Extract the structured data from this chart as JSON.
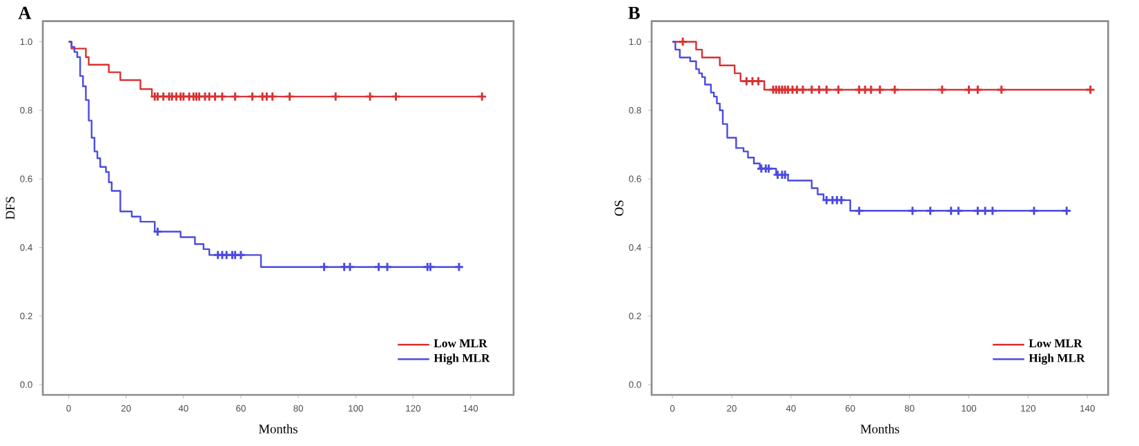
{
  "chart_data": [
    {
      "type": "step",
      "title": "A",
      "xlabel": "Months",
      "ylabel": "DFS",
      "xlim": [
        -9,
        155
      ],
      "ylim": [
        -0.03,
        1.06
      ],
      "xticks": [
        0,
        20,
        40,
        60,
        80,
        100,
        120,
        140
      ],
      "yticks": [
        {
          "value": 0,
          "label": "0.0"
        },
        {
          "value": 0.2,
          "label": "0.2"
        },
        {
          "value": 0.4,
          "label": "0.4"
        },
        {
          "value": 0.6,
          "label": "0.6"
        },
        {
          "value": 0.8,
          "label": "0.8"
        },
        {
          "value": 1,
          "label": "1.0"
        }
      ],
      "grid": false,
      "legend": "bottom right",
      "marker": "none",
      "line_style": "solid",
      "series": [
        {
          "name": "Low MLR",
          "type": "step",
          "color": "#d93030",
          "x": [
            0,
            1,
            6,
            7,
            14,
            18,
            25,
            29,
            144
          ],
          "values": [
            1.0,
            0.98,
            0.955,
            0.933,
            0.911,
            0.888,
            0.862,
            0.84,
            0.84
          ]
        },
        {
          "name": "High MLR",
          "type": "step",
          "color": "#4a4ae0",
          "x": [
            0,
            1,
            2,
            3,
            4,
            5,
            6,
            7,
            8,
            9,
            10,
            11,
            13,
            14,
            15,
            18,
            22,
            25,
            30,
            39,
            44,
            47,
            49,
            67,
            136
          ],
          "values": [
            1.0,
            0.985,
            0.97,
            0.955,
            0.9,
            0.87,
            0.83,
            0.77,
            0.72,
            0.68,
            0.66,
            0.635,
            0.62,
            0.59,
            0.565,
            0.505,
            0.49,
            0.475,
            0.446,
            0.43,
            0.41,
            0.395,
            0.378,
            0.343,
            0.343
          ]
        },
        {
          "type": "scatter",
          "marker": "cross",
          "color": "#d93030",
          "x": [
            30,
            31,
            33,
            35,
            36,
            37.5,
            39,
            40,
            42,
            43.5,
            44.5,
            45.5,
            47.5,
            49,
            51,
            53.5,
            58,
            64,
            67.5,
            69,
            71,
            77,
            93,
            105,
            114,
            144
          ],
          "values": [
            0.84,
            0.84,
            0.84,
            0.84,
            0.84,
            0.84,
            0.84,
            0.84,
            0.84,
            0.84,
            0.84,
            0.84,
            0.84,
            0.84,
            0.84,
            0.84,
            0.84,
            0.84,
            0.84,
            0.84,
            0.84,
            0.84,
            0.84,
            0.84,
            0.84,
            0.84
          ]
        },
        {
          "type": "scatter",
          "marker": "cross",
          "color": "#4a4ae0",
          "x": [
            31,
            52,
            53.5,
            55,
            57,
            58,
            60,
            89,
            96,
            98,
            108,
            111,
            125,
            126,
            136
          ],
          "values": [
            0.446,
            0.378,
            0.378,
            0.378,
            0.378,
            0.378,
            0.378,
            0.343,
            0.343,
            0.343,
            0.343,
            0.343,
            0.343,
            0.343,
            0.343
          ]
        }
      ]
    },
    {
      "type": "step",
      "title": "B",
      "xlabel": "Months",
      "ylabel": "OS",
      "xlim": [
        -7,
        147
      ],
      "ylim": [
        -0.03,
        1.06
      ],
      "xticks": [
        0,
        20,
        40,
        60,
        80,
        100,
        120,
        140
      ],
      "yticks": [
        {
          "value": 0,
          "label": "0.0"
        },
        {
          "value": 0.2,
          "label": "0.2"
        },
        {
          "value": 0.4,
          "label": "0.4"
        },
        {
          "value": 0.6,
          "label": "0.6"
        },
        {
          "value": 0.8,
          "label": "0.8"
        },
        {
          "value": 1,
          "label": "1.0"
        }
      ],
      "grid": false,
      "legend": "bottom right",
      "marker": "none",
      "line_style": "solid",
      "series": [
        {
          "name": "Low MLR",
          "type": "step",
          "color": "#d93030",
          "x": [
            0,
            8,
            10,
            16,
            21,
            23,
            31,
            141
          ],
          "values": [
            1.0,
            0.977,
            0.954,
            0.931,
            0.908,
            0.885,
            0.86,
            0.86
          ]
        },
        {
          "name": "High MLR",
          "type": "step",
          "color": "#4a4ae0",
          "x": [
            0,
            1,
            2.5,
            6,
            8,
            9,
            10,
            11,
            13,
            14,
            15,
            16,
            17,
            18.5,
            21.5,
            24,
            25.5,
            27.5,
            29.5,
            35,
            39,
            47,
            49,
            51,
            60,
            133
          ],
          "values": [
            1.0,
            0.977,
            0.954,
            0.943,
            0.92,
            0.908,
            0.897,
            0.875,
            0.852,
            0.84,
            0.82,
            0.8,
            0.76,
            0.72,
            0.69,
            0.68,
            0.662,
            0.645,
            0.63,
            0.612,
            0.595,
            0.573,
            0.555,
            0.538,
            0.507,
            0.507
          ]
        },
        {
          "type": "scatter",
          "marker": "cross",
          "color": "#d93030",
          "x": [
            3.5,
            25,
            27,
            29,
            34,
            35,
            36,
            37,
            38,
            39,
            40.5,
            42,
            44,
            47,
            49.5,
            52,
            56,
            63,
            65,
            67,
            70,
            75,
            91,
            100,
            103,
            111,
            141
          ],
          "values": [
            1.0,
            0.885,
            0.885,
            0.885,
            0.86,
            0.86,
            0.86,
            0.86,
            0.86,
            0.86,
            0.86,
            0.86,
            0.86,
            0.86,
            0.86,
            0.86,
            0.86,
            0.86,
            0.86,
            0.86,
            0.86,
            0.86,
            0.86,
            0.86,
            0.86,
            0.86,
            0.86
          ]
        },
        {
          "type": "scatter",
          "marker": "cross",
          "color": "#4a4ae0",
          "x": [
            30,
            31.5,
            32.5,
            35.5,
            37,
            38,
            52,
            54,
            55.5,
            57,
            63,
            81,
            87,
            94,
            96.5,
            103,
            105.5,
            108,
            122,
            133
          ],
          "values": [
            0.63,
            0.63,
            0.63,
            0.612,
            0.612,
            0.612,
            0.538,
            0.538,
            0.538,
            0.538,
            0.507,
            0.507,
            0.507,
            0.507,
            0.507,
            0.507,
            0.507,
            0.507,
            0.507,
            0.507
          ]
        }
      ]
    }
  ]
}
